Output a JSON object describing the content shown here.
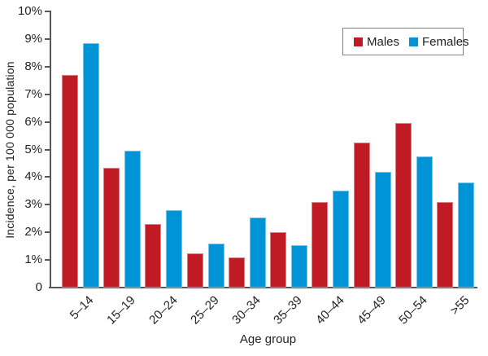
{
  "chart_data": {
    "type": "bar",
    "title": "",
    "xlabel": "Age group",
    "ylabel": "Incidence, per 100 000 population",
    "categories": [
      "5–14",
      "15–19",
      "20–24",
      "25–29",
      "30–34",
      "35–39",
      "40–44",
      "45–49",
      "50–54",
      ">55"
    ],
    "series": [
      {
        "name": "Males",
        "color": "#C01B24",
        "values": [
          7.7,
          4.35,
          2.3,
          1.25,
          1.1,
          2.0,
          3.1,
          5.25,
          5.95,
          3.1
        ]
      },
      {
        "name": "Females",
        "color": "#0094D7",
        "values": [
          8.85,
          4.95,
          2.8,
          1.6,
          2.55,
          1.55,
          3.5,
          4.2,
          4.75,
          3.8
        ]
      }
    ],
    "ylim": [
      0,
      10
    ],
    "y_tick_labels": [
      "0",
      "1%",
      "2%",
      "3%",
      "4%",
      "5%",
      "6%",
      "7%",
      "8%",
      "9%",
      "10%"
    ],
    "grid": false,
    "legend_position": "top-right",
    "axis_color": "#56575A",
    "text_color": "#262223",
    "background_color": "#FFFFFF"
  }
}
